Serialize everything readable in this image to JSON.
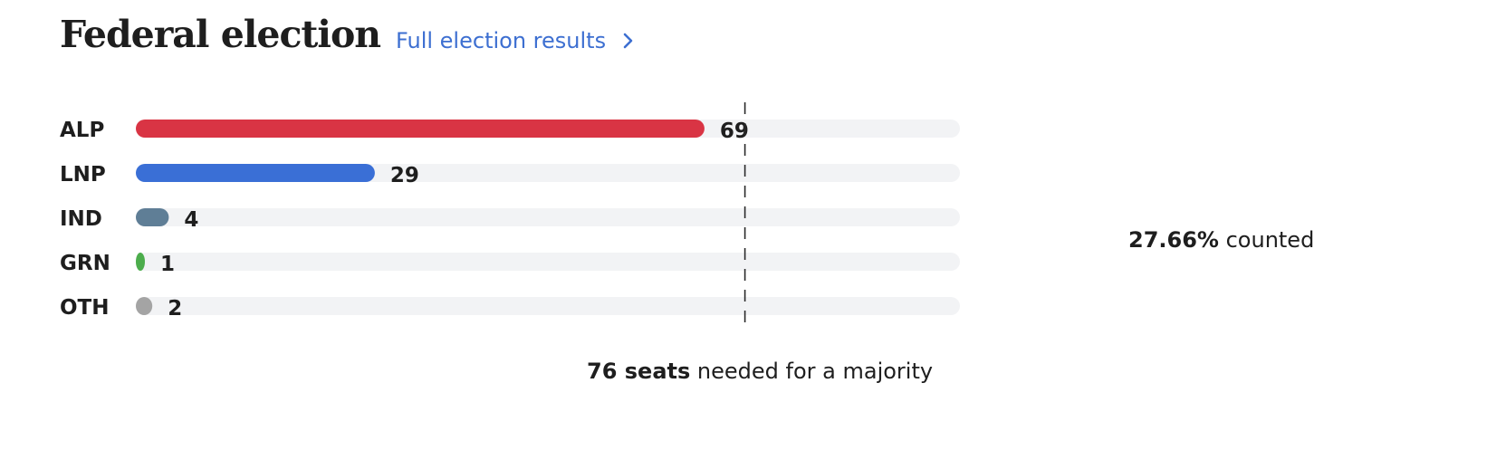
{
  "header": {
    "title": "Federal election",
    "link_label": "Full election results"
  },
  "chart_data": {
    "type": "bar",
    "orientation": "horizontal",
    "categories": [
      "ALP",
      "LNP",
      "IND",
      "GRN",
      "OTH"
    ],
    "values": [
      69,
      29,
      4,
      1,
      2
    ],
    "colors": [
      "#d93444",
      "#3a6fd6",
      "#5f7e96",
      "#4cad4c",
      "#a4a4a4"
    ],
    "track_color": "#f2f3f5",
    "xlim": [
      0,
      100
    ],
    "majority_line": 76,
    "grid": false
  },
  "majority_note": {
    "bold": "76 seats",
    "rest": " needed for a majority"
  },
  "counted": {
    "bold": "27.66%",
    "rest": " counted"
  }
}
